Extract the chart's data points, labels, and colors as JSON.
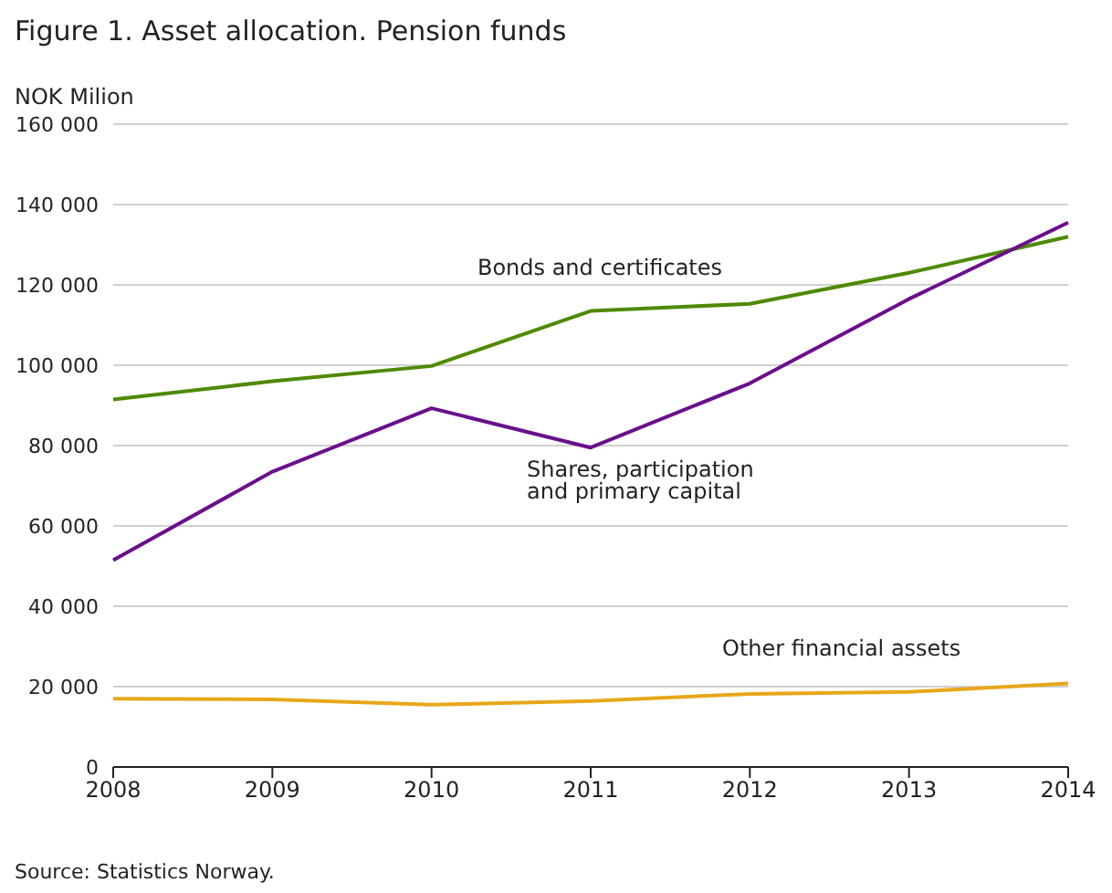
{
  "chart_data": {
    "type": "line",
    "title": "Figure 1. Asset allocation. Pension funds",
    "ylabel": "NOK Milion",
    "categories": [
      "2008",
      "2009",
      "2010",
      "2011",
      "2012",
      "2013",
      "2014"
    ],
    "series": [
      {
        "name": "Bonds and certificates",
        "color": "#4e8a00",
        "values": [
          91500,
          96000,
          99800,
          113500,
          115300,
          123000,
          132000
        ]
      },
      {
        "name": "Shares, participation and primary capital",
        "color": "#6a0f8c",
        "values": [
          51500,
          73500,
          89300,
          79500,
          95500,
          116500,
          135500
        ]
      },
      {
        "name": "Other financial assets",
        "color": "#e8a719",
        "values": [
          17000,
          16800,
          15500,
          16400,
          18200,
          18700,
          20800
        ]
      }
    ],
    "ylim": [
      0,
      160000
    ],
    "yticks": [
      {
        "value": 0,
        "label": "0"
      },
      {
        "value": 20000,
        "label": "20 000"
      },
      {
        "value": 40000,
        "label": "40 000"
      },
      {
        "value": 60000,
        "label": "60 000"
      },
      {
        "value": 80000,
        "label": "80 000"
      },
      {
        "value": 100000,
        "label": "100 000"
      },
      {
        "value": 120000,
        "label": "120 000"
      },
      {
        "value": 140000,
        "label": "140 000"
      },
      {
        "value": 160000,
        "label": "160 000"
      }
    ],
    "grid": "y",
    "legend": false,
    "marker": "none",
    "line_style": "solid",
    "annotations": [
      "Source: Statistics Norway."
    ]
  }
}
